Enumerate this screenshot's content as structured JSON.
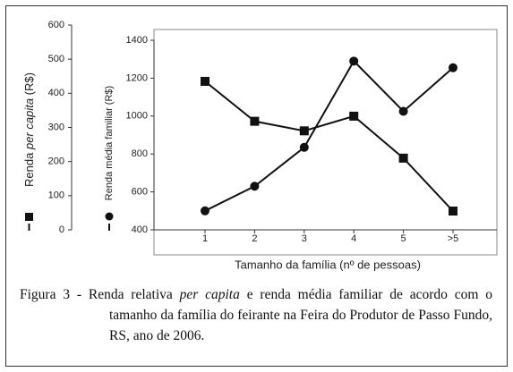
{
  "chart_data": {
    "type": "line",
    "categories": [
      "1",
      "2",
      "3",
      "4",
      "5",
      ">5"
    ],
    "series": [
      {
        "name": [
          "Renda ",
          "per capita",
          " (R$)"
        ],
        "color": "#111111",
        "marker": "square",
        "axis": "y",
        "values": [
          435,
          318,
          290,
          333,
          210,
          55
        ]
      },
      {
        "name": "Renda média familiar (R$)",
        "color": "#111111",
        "marker": "circle",
        "axis": "y2",
        "values": [
          500,
          630,
          835,
          1290,
          1025,
          1255
        ]
      }
    ],
    "ylim": [
      0,
      600
    ],
    "yticks": [
      0,
      100,
      200,
      300,
      400,
      500,
      600
    ],
    "y2lim": [
      400,
      1400
    ],
    "y2ticks": [
      400,
      600,
      800,
      1000,
      1200,
      1400
    ],
    "x_label": "Tamanho da família (nº de pessoas)",
    "caption": [
      "Figura 3 - Renda relativa ",
      "per capita",
      " e renda média familiar de acordo com o tamanho da família do feirante na Feira do Produtor de Passo Fundo, RS, ano de 2006."
    ]
  }
}
